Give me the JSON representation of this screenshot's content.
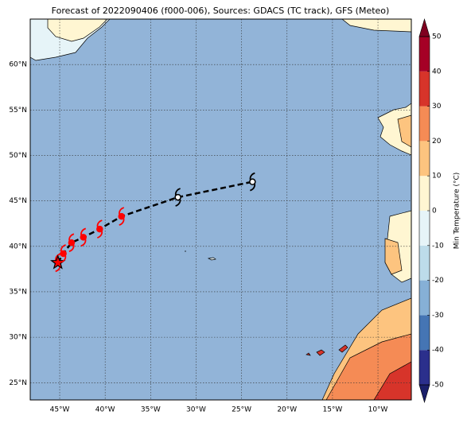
{
  "chart_data": {
    "type": "map",
    "title": "Forecast of 2022090406 (f000-006), Sources: GDACS (TC track), GFS (Meteo)",
    "xlim": [
      -48.24,
      -6.33
    ],
    "ylim": [
      23.1,
      65
    ],
    "xticks": [
      {
        "value": -45,
        "label": "45°W"
      },
      {
        "value": -40,
        "label": "40°W"
      },
      {
        "value": -35,
        "label": "35°W"
      },
      {
        "value": -30,
        "label": "30°W"
      },
      {
        "value": -25,
        "label": "25°W"
      },
      {
        "value": -20,
        "label": "20°W"
      },
      {
        "value": -15,
        "label": "15°W"
      },
      {
        "value": -10,
        "label": "10°W"
      }
    ],
    "yticks": [
      {
        "value": 25,
        "label": "25°N"
      },
      {
        "value": 30,
        "label": "30°N"
      },
      {
        "value": 35,
        "label": "35°N"
      },
      {
        "value": 40,
        "label": "40°N"
      },
      {
        "value": 45,
        "label": "45°N"
      },
      {
        "value": 50,
        "label": "50°N"
      },
      {
        "value": 55,
        "label": "55°N"
      },
      {
        "value": 60,
        "label": "60°N"
      }
    ],
    "grid": true,
    "track": {
      "lon": [
        -45.2,
        -44.6,
        -43.7,
        -42.4,
        -40.6,
        -38.2,
        -32.0,
        -23.8
      ],
      "lat": [
        38.2,
        39.2,
        40.4,
        41.0,
        41.9,
        43.3,
        45.4,
        47.1
      ],
      "colors": [
        "red",
        "red",
        "red",
        "red",
        "red",
        "red",
        "black",
        "black"
      ]
    },
    "colorbar": {
      "label": "Min Temperature (°C)",
      "lim": [
        -50,
        50
      ],
      "ticks": [
        -50,
        -40,
        -30,
        -20,
        -10,
        0,
        10,
        20,
        30,
        40,
        50
      ],
      "colors": [
        "#2b2f8c",
        "#4575b4",
        "#86b0d6",
        "#bddcea",
        "#e6f4f8",
        "#fff6d2",
        "#fdc47f",
        "#f58b55",
        "#d7342a",
        "#a50026"
      ],
      "under": "#1a1f6a",
      "over": "#7f0020"
    }
  }
}
